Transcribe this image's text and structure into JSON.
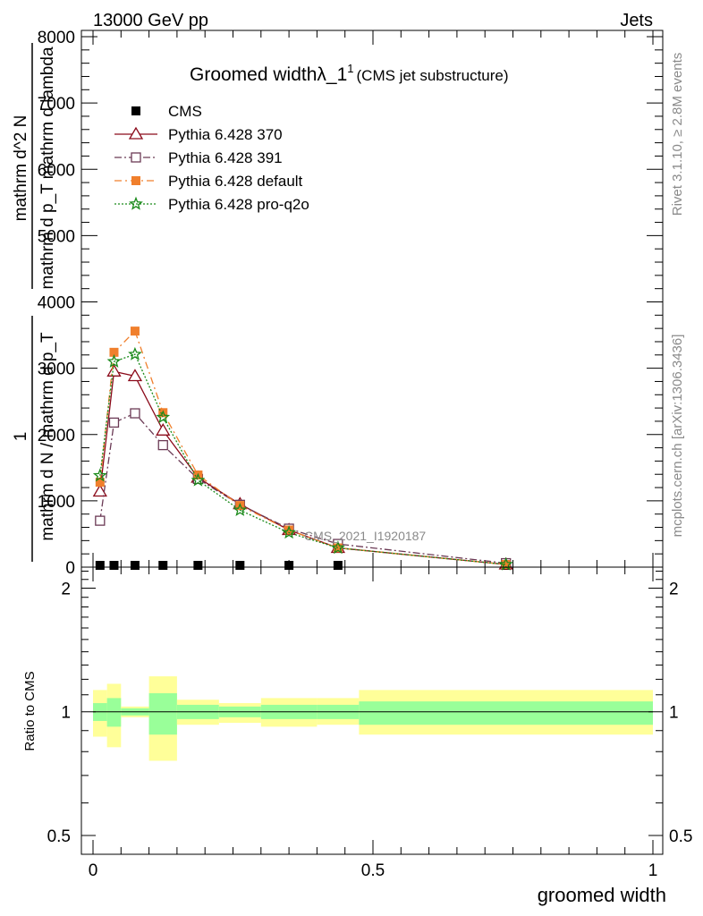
{
  "header": {
    "left": "13000 GeV pp",
    "right": "Jets"
  },
  "chart_data": {
    "type": "line",
    "title": "Groomed width",
    "title_symbol": "λ_1",
    "title_sup": "1",
    "subtitle": "(CMS jet substructure)",
    "ylabel": {
      "numerator": "1",
      "denominator": "mathrm d N / mathrm d p_T",
      "numerator2": "mathrm d^2 N",
      "denominator2": "mathrm d p_T mathrm d lambda"
    },
    "xlabel": "groomed width",
    "ratio_ylabel": "Ratio to CMS",
    "analysis_label": "CMS_2021_I1920187",
    "side_label_top": "Rivet 3.1.10, ≥ 2.8M events",
    "side_label_bottom": "mcplots.cern.ch [arXiv:1306.3436]",
    "xlim": [
      0,
      1
    ],
    "ylim": [
      0,
      8000
    ],
    "ratio_ylim": [
      0.5,
      2.2
    ],
    "x_ticks": [
      "0",
      "0.5",
      "1"
    ],
    "y_ticks": [
      "0",
      "1000",
      "2000",
      "3000",
      "4000",
      "5000",
      "6000",
      "7000",
      "8000"
    ],
    "ratio_ticks": [
      "0.5",
      "1",
      "2"
    ],
    "bin_edges": [
      0.0,
      0.025,
      0.05,
      0.1,
      0.15,
      0.225,
      0.3,
      0.4,
      0.475,
      1.0
    ],
    "x": [
      0.0125,
      0.0375,
      0.075,
      0.125,
      0.1875,
      0.2625,
      0.35,
      0.4375,
      0.7375
    ],
    "series": [
      {
        "name": "CMS",
        "values": [
          0,
          0,
          0,
          0,
          0,
          0,
          0,
          0,
          0
        ],
        "color": "#000000",
        "marker": "square-filled"
      },
      {
        "name": "Pythia 6.428 370",
        "values": [
          1140,
          2950,
          2880,
          2060,
          1350,
          950,
          560,
          290,
          40
        ],
        "color": "#8b0a1a",
        "marker": "triangle-open",
        "dash": ""
      },
      {
        "name": "Pythia 6.428 391",
        "values": [
          700,
          2180,
          2320,
          1840,
          1330,
          940,
          580,
          350,
          60
        ],
        "color": "#6b3a55",
        "marker": "square-open",
        "dash": "8 3 2 3"
      },
      {
        "name": "Pythia 6.428 default",
        "values": [
          1280,
          3240,
          3560,
          2330,
          1390,
          930,
          560,
          290,
          40
        ],
        "color": "#f07f2c",
        "marker": "square-filled",
        "dash": "8 4 2 4"
      },
      {
        "name": "Pythia 6.428 pro-q2o",
        "values": [
          1380,
          3100,
          3210,
          2260,
          1310,
          860,
          520,
          290,
          40
        ],
        "color": "#1a8a1a",
        "marker": "star",
        "dash": "2 2"
      }
    ],
    "ratio_bands": {
      "inner": [
        [
          0.95,
          1.05
        ],
        [
          0.92,
          1.08
        ],
        [
          0.98,
          1.02
        ],
        [
          0.88,
          1.11
        ],
        [
          0.96,
          1.04
        ],
        [
          0.97,
          1.03
        ],
        [
          0.96,
          1.04
        ],
        [
          0.96,
          1.04
        ],
        [
          0.93,
          1.06
        ]
      ],
      "outer": [
        [
          0.87,
          1.13
        ],
        [
          0.82,
          1.17
        ],
        [
          0.97,
          1.03
        ],
        [
          0.76,
          1.22
        ],
        [
          0.93,
          1.07
        ],
        [
          0.94,
          1.05
        ],
        [
          0.92,
          1.08
        ],
        [
          0.93,
          1.08
        ],
        [
          0.88,
          1.13
        ]
      ],
      "inner_color": "#99ff99",
      "outer_color": "#ffff99"
    }
  }
}
